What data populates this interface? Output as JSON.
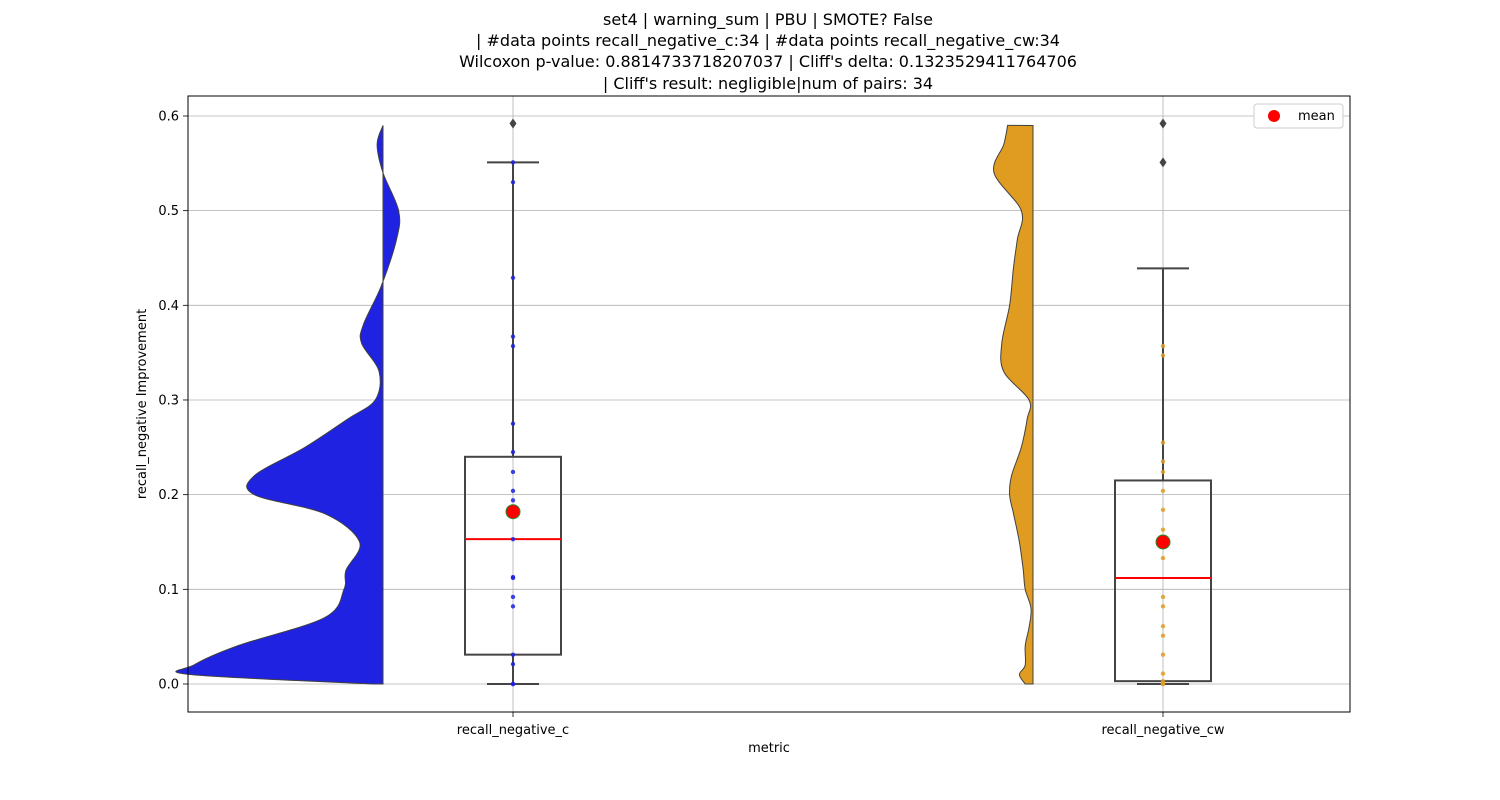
{
  "chart_data": {
    "type": "violin+box+strip",
    "title_lines": [
      "set4 | warning_sum | PBU | SMOTE? False",
      "| #data points recall_negative_c:34 | #data points recall_negative_cw:34",
      "Wilcoxon p-value: 0.8814733718207037 | Cliff's delta: 0.1323529411764706",
      "| Cliff's result: negligible|num of pairs: 34"
    ],
    "xlabel": "metric",
    "ylabel": "recall_negative Improvement",
    "categories": [
      "recall_negative_c",
      "recall_negative_cw"
    ],
    "ylim": [
      -0.03,
      0.62
    ],
    "yticks": [
      0.0,
      0.1,
      0.2,
      0.3,
      0.4,
      0.5,
      0.6
    ],
    "ytick_labels": [
      "0.0",
      "0.1",
      "0.2",
      "0.3",
      "0.4",
      "0.5",
      "0.6"
    ],
    "grid": true,
    "legend": {
      "placement": "top-right",
      "entries": [
        {
          "label": "mean",
          "color": "#ff0000"
        }
      ]
    },
    "series": [
      {
        "category": "recall_negative_c",
        "color": "#1f22e0",
        "violin_side": "left",
        "violin_profile": [
          [
            0.0,
            0.05
          ],
          [
            0.01,
            0.99
          ],
          [
            0.02,
            0.97
          ],
          [
            0.04,
            0.75
          ],
          [
            0.07,
            0.3
          ],
          [
            0.1,
            0.2
          ],
          [
            0.12,
            0.19
          ],
          [
            0.15,
            0.12
          ],
          [
            0.18,
            0.3
          ],
          [
            0.2,
            0.66
          ],
          [
            0.22,
            0.66
          ],
          [
            0.25,
            0.4
          ],
          [
            0.28,
            0.18
          ],
          [
            0.3,
            0.04
          ],
          [
            0.33,
            0.02
          ],
          [
            0.36,
            0.11
          ],
          [
            0.38,
            0.1
          ],
          [
            0.42,
            0.01
          ],
          [
            0.47,
            -0.07
          ],
          [
            0.5,
            -0.08
          ],
          [
            0.54,
            0.0
          ],
          [
            0.57,
            0.03
          ],
          [
            0.59,
            0.0
          ]
        ],
        "box": {
          "q1": 0.031,
          "median": 0.153,
          "q3": 0.24,
          "whisker_low": 0.0,
          "whisker_high": 0.551
        },
        "mean": 0.182,
        "outliers": [
          0.592
        ],
        "points": [
          0.0,
          0.0,
          0.0,
          0.021,
          0.031,
          0.082,
          0.092,
          0.112,
          0.113,
          0.153,
          0.184,
          0.194,
          0.204,
          0.224,
          0.245,
          0.275,
          0.357,
          0.367,
          0.429,
          0.53,
          0.551
        ]
      },
      {
        "category": "recall_negative_cw",
        "color": "#e09c21",
        "violin_side": "left",
        "violin_profile": [
          [
            0.0,
            0.04
          ],
          [
            0.01,
            0.07
          ],
          [
            0.02,
            0.04
          ],
          [
            0.04,
            0.04
          ],
          [
            0.06,
            0.02
          ],
          [
            0.08,
            0.01
          ],
          [
            0.1,
            0.04
          ],
          [
            0.12,
            0.05
          ],
          [
            0.15,
            0.07
          ],
          [
            0.18,
            0.1
          ],
          [
            0.2,
            0.12
          ],
          [
            0.22,
            0.11
          ],
          [
            0.25,
            0.06
          ],
          [
            0.28,
            0.03
          ],
          [
            0.3,
            0.02
          ],
          [
            0.33,
            0.15
          ],
          [
            0.36,
            0.16
          ],
          [
            0.4,
            0.12
          ],
          [
            0.44,
            0.1
          ],
          [
            0.47,
            0.08
          ],
          [
            0.5,
            0.06
          ],
          [
            0.54,
            0.2
          ],
          [
            0.57,
            0.15
          ],
          [
            0.59,
            0.13
          ]
        ],
        "box": {
          "q1": 0.003,
          "median": 0.112,
          "q3": 0.215,
          "whisker_low": 0.0,
          "whisker_high": 0.439
        },
        "mean": 0.15,
        "outliers": [
          0.551,
          0.592
        ],
        "points": [
          0.0,
          0.0,
          0.003,
          0.011,
          0.031,
          0.051,
          0.061,
          0.082,
          0.092,
          0.133,
          0.153,
          0.163,
          0.184,
          0.204,
          0.224,
          0.235,
          0.255,
          0.347,
          0.357
        ]
      }
    ]
  }
}
